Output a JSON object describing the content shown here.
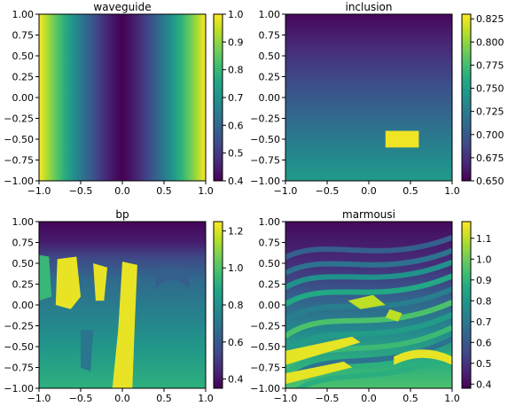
{
  "chart_data": [
    {
      "type": "heatmap",
      "title": "waveguide",
      "xlim": [
        -1.0,
        1.0
      ],
      "ylim": [
        -1.0,
        1.0
      ],
      "xticks": [
        "−1.0",
        "−0.5",
        "0.0",
        "0.5",
        "1.0"
      ],
      "yticks": [
        "1.00",
        "0.75",
        "0.50",
        "0.25",
        "0.00",
        "−0.25",
        "−0.50",
        "−0.75",
        "−1.00"
      ],
      "colorbar": {
        "colormap": "viridis",
        "range": [
          0.4,
          1.0
        ],
        "ticks": [
          "1.0",
          "0.9",
          "0.8",
          "0.7",
          "0.6",
          "0.5",
          "0.4"
        ]
      },
      "field": "varies with x only: ~0.4 at x=0 rising to ~1.0 at x=±1"
    },
    {
      "type": "heatmap",
      "title": "inclusion",
      "xlim": [
        -1.0,
        1.0
      ],
      "ylim": [
        -1.0,
        1.0
      ],
      "xticks": [
        "−1.0",
        "−0.5",
        "0.0",
        "0.5",
        "1.0"
      ],
      "yticks": [
        "1.00",
        "0.75",
        "0.50",
        "0.25",
        "0.00",
        "−0.25",
        "−0.50",
        "−0.75",
        "−1.00"
      ],
      "colorbar": {
        "colormap": "viridis",
        "range": [
          0.65,
          0.83
        ],
        "ticks": [
          "0.825",
          "0.800",
          "0.775",
          "0.750",
          "0.725",
          "0.700",
          "0.675",
          "0.650"
        ]
      },
      "field": "vertical gradient ~0.65 at top to ~0.74 at bottom; inclusion rectangle x∈[0.2,0.6], y∈[-0.6,-0.4] value ~0.83"
    },
    {
      "type": "heatmap",
      "title": "bp",
      "xlim": [
        -1.0,
        1.0
      ],
      "ylim": [
        -1.0,
        1.0
      ],
      "xticks": [
        "−1.0",
        "−0.5",
        "0.0",
        "0.5",
        "1.0"
      ],
      "yticks": [
        "1.00",
        "0.75",
        "0.50",
        "0.25",
        "0.00",
        "−0.25",
        "−0.50",
        "−0.75",
        "−1.00"
      ],
      "colorbar": {
        "colormap": "viridis",
        "range": [
          0.35,
          1.25
        ],
        "ticks": [
          "1.2",
          "1.0",
          "0.8",
          "0.6",
          "0.4"
        ]
      }
    },
    {
      "type": "heatmap",
      "title": "marmousi",
      "xlim": [
        -1.0,
        1.0
      ],
      "ylim": [
        -1.0,
        1.0
      ],
      "xticks": [
        "−1.0",
        "−0.5",
        "0.0",
        "0.5",
        "1.0"
      ],
      "yticks": [
        "1.00",
        "0.75",
        "0.50",
        "0.25",
        "0.00",
        "−0.25",
        "−0.50",
        "−0.75",
        "−1.00"
      ],
      "colorbar": {
        "colormap": "viridis",
        "range": [
          0.38,
          1.18
        ],
        "ticks": [
          "1.1",
          "1.0",
          "0.9",
          "0.8",
          "0.7",
          "0.6",
          "0.5",
          "0.4"
        ]
      }
    }
  ]
}
